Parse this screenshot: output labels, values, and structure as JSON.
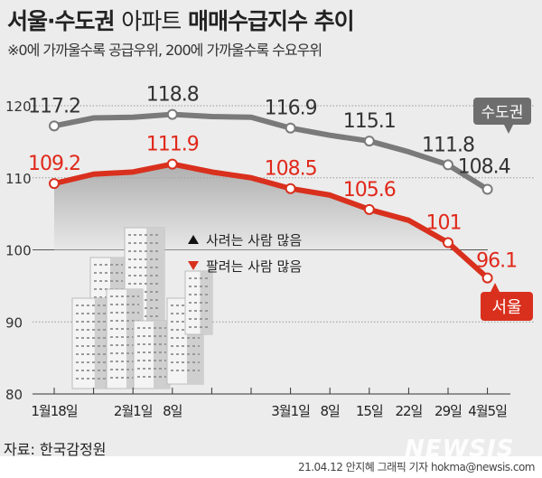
{
  "title": {
    "part1": "서울·수도권",
    "part2": "아파트",
    "part3": "매매수급지수 추이"
  },
  "subtitle": "※0에 가까울수록 공급우위, 200에 가까울수록 수요우위",
  "legend": {
    "up": "사려는 사람 많음",
    "down": "팔려는 사람 많음"
  },
  "source": "자료: 한국감정원",
  "credit": "21.04.12 안지혜 그래픽 기자 hokma@newsis.com",
  "logo": "NEWSIS",
  "colors": {
    "capital": "#7a7a7a",
    "seoul": "#d9301e",
    "background": "#ececec"
  },
  "chart_data": {
    "type": "line",
    "title": "서울·수도권 아파트 매매수급지수 추이",
    "x": [
      "1월18일",
      "",
      "2월1일",
      "8일",
      "",
      "",
      "3월1일",
      "8일",
      "15일",
      "22일",
      "29일",
      "4월5일"
    ],
    "ylim": [
      80,
      120
    ],
    "yticks": [
      80,
      90,
      100,
      110,
      120
    ],
    "grid": "dotted at 110 and 120, solid at 100",
    "series": [
      {
        "name": "수도권",
        "values": [
          117.2,
          118.3,
          118.4,
          118.8,
          118.5,
          118.4,
          116.9,
          115.9,
          115.1,
          113.6,
          111.8,
          108.4
        ],
        "labels": [
          "117.2",
          "",
          "",
          "118.8",
          "",
          "",
          "116.9",
          "",
          "115.1",
          "",
          "111.8",
          "108.4"
        ]
      },
      {
        "name": "서울",
        "values": [
          109.2,
          110.5,
          110.8,
          111.9,
          110.8,
          110.0,
          108.5,
          107.6,
          105.6,
          104.1,
          101,
          96.1
        ],
        "labels": [
          "109.2",
          "",
          "",
          "111.9",
          "",
          "",
          "108.5",
          "",
          "105.6",
          "",
          "101",
          "96.1"
        ]
      }
    ]
  }
}
